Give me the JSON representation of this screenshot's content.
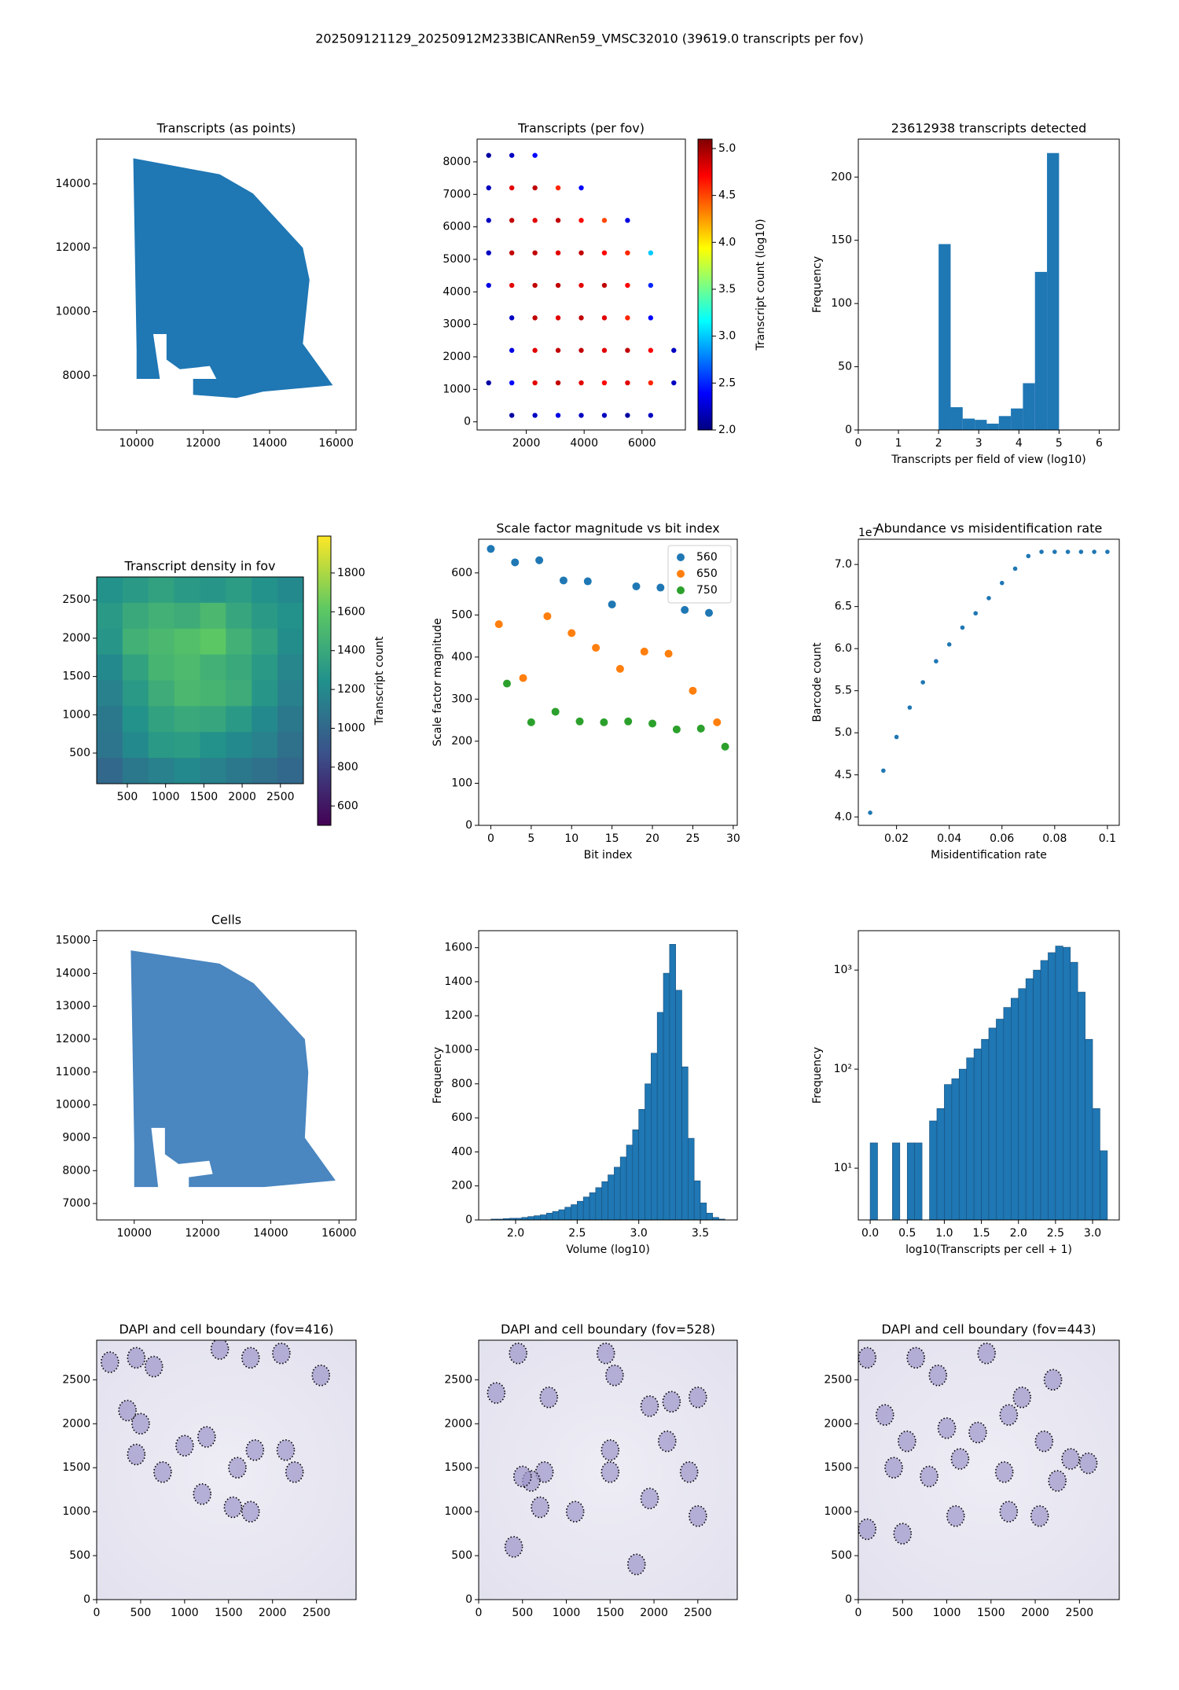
{
  "title": "202509121129_20250912M233BICANRen59_VMSC32010 (39619.0 transcripts per fov)",
  "chart_data": [
    {
      "type": "region",
      "title": "Transcripts (as points)",
      "color": "#1f77b4",
      "x": [
        9900,
        12500,
        13500,
        15000,
        15200,
        15000,
        15900,
        13800,
        13000,
        11700,
        11700,
        12400,
        12200,
        11300,
        10900,
        10900,
        10500,
        10700,
        10000,
        10000
      ],
      "y": [
        14800,
        14300,
        13700,
        12000,
        11000,
        9000,
        7700,
        7500,
        7300,
        7400,
        7900,
        7900,
        8300,
        8200,
        8500,
        9300,
        9300,
        7900,
        7900,
        8800
      ],
      "xlim": [
        8800,
        16600
      ],
      "ylim": [
        6300,
        15400
      ],
      "xticks": [
        10000,
        12000,
        14000,
        16000
      ],
      "yticks": [
        8000,
        10000,
        12000,
        14000
      ]
    },
    {
      "type": "fovscatter",
      "title": "Transcripts (per fov)",
      "x": [
        700,
        1500,
        2300,
        700,
        1500,
        2300,
        3100,
        3900,
        700,
        1500,
        2300,
        3100,
        3900,
        4700,
        5500,
        700,
        1500,
        2300,
        3100,
        3900,
        4700,
        5500,
        6300,
        700,
        1500,
        2300,
        3100,
        3900,
        4700,
        5500,
        6300,
        1500,
        2300,
        3100,
        3900,
        4700,
        5500,
        6300,
        1500,
        2300,
        3100,
        3900,
        4700,
        5500,
        6300,
        7100,
        700,
        1500,
        2300,
        3100,
        3900,
        4700,
        5500,
        6300,
        7100,
        1500,
        2300,
        3100,
        3900,
        4700,
        5500,
        6300
      ],
      "y": [
        8200,
        8200,
        8200,
        7200,
        7200,
        7200,
        7200,
        7200,
        6200,
        6200,
        6200,
        6200,
        6200,
        6200,
        6200,
        5200,
        5200,
        5200,
        5200,
        5200,
        5200,
        5200,
        5200,
        4200,
        4200,
        4200,
        4200,
        4200,
        4200,
        4200,
        4200,
        3200,
        3200,
        3200,
        3200,
        3200,
        3200,
        3200,
        2200,
        2200,
        2200,
        2200,
        2200,
        2200,
        2200,
        2200,
        1200,
        1200,
        1200,
        1200,
        1200,
        1200,
        1200,
        1200,
        1200,
        200,
        200,
        200,
        200,
        200,
        200,
        200
      ],
      "c": [
        2.1,
        2.2,
        2.4,
        2.2,
        4.8,
        4.9,
        4.6,
        2.4,
        2.2,
        4.9,
        4.8,
        4.9,
        4.7,
        4.5,
        2.3,
        2.2,
        4.9,
        4.9,
        4.8,
        4.9,
        4.7,
        4.6,
        3.0,
        2.3,
        4.8,
        4.9,
        4.9,
        4.8,
        4.9,
        4.7,
        2.5,
        2.2,
        4.9,
        4.8,
        4.9,
        4.8,
        4.6,
        2.4,
        2.3,
        4.8,
        4.9,
        4.9,
        4.8,
        4.9,
        4.7,
        2.2,
        2.1,
        2.4,
        4.8,
        4.9,
        4.8,
        4.7,
        4.8,
        4.6,
        2.2,
        2.1,
        2.2,
        2.3,
        2.2,
        2.2,
        2.1,
        2.2
      ],
      "xlim": [
        300,
        7500
      ],
      "ylim": [
        -250,
        8700
      ],
      "xticks": [
        2000,
        4000,
        6000
      ],
      "yticks": [
        0,
        1000,
        2000,
        3000,
        4000,
        5000,
        6000,
        7000,
        8000
      ],
      "colorbar": {
        "label": "Transcript count (log10)",
        "cmap": "jet",
        "lim": [
          2.0,
          5.1
        ],
        "ticks": [
          {
            "value": 2.0,
            "label": "2.0"
          },
          {
            "value": 2.5,
            "label": "2.5"
          },
          {
            "value": 3.0,
            "label": "3.0"
          },
          {
            "value": 3.5,
            "label": "3.5"
          },
          {
            "value": 4.0,
            "label": "4.0"
          },
          {
            "value": 4.5,
            "label": "4.5"
          },
          {
            "value": 5.0,
            "label": "5.0"
          }
        ]
      }
    },
    {
      "type": "histogram",
      "title": "23612938 transcripts detected",
      "xlabel": "Transcripts per field of view (log10)",
      "ylabel": "Frequency",
      "color": "#1f77b4",
      "bins": [
        2.0,
        2.3,
        2.6,
        2.9,
        3.2,
        3.5,
        3.8,
        4.1,
        4.4,
        4.7,
        5.0
      ],
      "values": [
        147,
        18,
        9,
        8,
        5,
        11,
        17,
        37,
        125,
        219
      ],
      "xlim": [
        0,
        6.5
      ],
      "ylim": [
        0,
        230
      ],
      "xticks": [
        0,
        1,
        2,
        3,
        4,
        5,
        6
      ],
      "yticks": [
        0,
        50,
        100,
        150,
        200
      ]
    },
    {
      "type": "heatmap",
      "title": "Transcript density in fov",
      "z": [
        [
          1250,
          1300,
          1350,
          1300,
          1280,
          1320,
          1250,
          1200
        ],
        [
          1300,
          1400,
          1450,
          1420,
          1500,
          1380,
          1300,
          1250
        ],
        [
          1280,
          1450,
          1500,
          1550,
          1600,
          1450,
          1350,
          1220
        ],
        [
          1200,
          1350,
          1480,
          1520,
          1450,
          1400,
          1300,
          1180
        ],
        [
          1150,
          1300,
          1420,
          1500,
          1480,
          1420,
          1280,
          1150
        ],
        [
          1100,
          1250,
          1350,
          1400,
          1380,
          1300,
          1200,
          1100
        ],
        [
          1080,
          1200,
          1300,
          1320,
          1250,
          1200,
          1150,
          1050
        ],
        [
          1000,
          1100,
          1150,
          1200,
          1150,
          1100,
          1050,
          1000
        ]
      ],
      "xlim": [
        100,
        2800
      ],
      "ylim": [
        100,
        2800
      ],
      "xticks": [
        500,
        1000,
        1500,
        2000,
        2500
      ],
      "yticks": [
        500,
        1000,
        1500,
        2000,
        2500
      ],
      "colorbar": {
        "label": "Transcript count",
        "cmap": "viridis",
        "lim": [
          500,
          1990
        ],
        "ticks": [
          600,
          800,
          1000,
          1200,
          1400,
          1600,
          1800
        ]
      }
    },
    {
      "type": "scatter",
      "title": "Scale factor magnitude vs bit index",
      "xlabel": "Bit index",
      "ylabel": "Scale factor magnitude",
      "legend": "upper right",
      "series": [
        {
          "name": "560",
          "color": "#1f77b4",
          "x": [
            0,
            3,
            6,
            9,
            12,
            15,
            18,
            21,
            24,
            27
          ],
          "values": [
            657,
            625,
            630,
            582,
            580,
            525,
            568,
            565,
            512,
            505
          ]
        },
        {
          "name": "650",
          "color": "#ff7f0e",
          "x": [
            1,
            4,
            7,
            10,
            13,
            16,
            19,
            22,
            25,
            28
          ],
          "values": [
            478,
            350,
            497,
            457,
            422,
            372,
            413,
            408,
            320,
            245
          ]
        },
        {
          "name": "750",
          "color": "#2ca02c",
          "x": [
            2,
            5,
            8,
            11,
            14,
            17,
            20,
            23,
            26,
            29
          ],
          "values": [
            337,
            245,
            270,
            247,
            245,
            247,
            242,
            228,
            230,
            187
          ]
        }
      ],
      "xlim": [
        -1.5,
        30.5
      ],
      "ylim": [
        0,
        680
      ],
      "xticks": [
        0,
        5,
        10,
        15,
        20,
        25,
        30
      ],
      "yticks": [
        0,
        100,
        200,
        300,
        400,
        500,
        600
      ]
    },
    {
      "type": "scatter",
      "title": "Abundance vs misidentification rate",
      "xlabel": "Misidentification rate",
      "ylabel": "Barcode count",
      "offset_text": "1e7",
      "small": true,
      "series": [
        {
          "color": "#1f77b4",
          "x": [
            0.01,
            0.015,
            0.02,
            0.025,
            0.03,
            0.035,
            0.04,
            0.045,
            0.05,
            0.055,
            0.06,
            0.065,
            0.07,
            0.075,
            0.08,
            0.085,
            0.09,
            0.095,
            0.1
          ],
          "values": [
            4.05,
            4.55,
            4.95,
            5.3,
            5.6,
            5.85,
            6.05,
            6.25,
            6.42,
            6.6,
            6.78,
            6.95,
            7.1,
            7.15,
            7.15,
            7.15,
            7.15,
            7.15,
            7.15
          ]
        }
      ],
      "xlim": [
        0.0055,
        0.1045
      ],
      "ylim": [
        3.9,
        7.3
      ],
      "xticks": [
        0.02,
        0.04,
        0.06,
        0.08,
        0.1
      ],
      "yticks": [
        {
          "value": 4.0,
          "label": "4.0"
        },
        {
          "value": 4.5,
          "label": "4.5"
        },
        {
          "value": 5.0,
          "label": "5.0"
        },
        {
          "value": 5.5,
          "label": "5.5"
        },
        {
          "value": 6.0,
          "label": "6.0"
        },
        {
          "value": 6.5,
          "label": "6.5"
        },
        {
          "value": 7.0,
          "label": "7.0"
        }
      ]
    },
    {
      "type": "region",
      "title": "Cells",
      "color": "#4a86c0",
      "x": [
        9900,
        12500,
        13500,
        15000,
        15100,
        15000,
        15900,
        13800,
        13000,
        11600,
        11600,
        12300,
        12200,
        11300,
        10900,
        10900,
        10500,
        10700,
        10000,
        10000
      ],
      "y": [
        14700,
        14300,
        13700,
        12000,
        11000,
        9000,
        7700,
        7500,
        7500,
        7500,
        7800,
        7900,
        8300,
        8200,
        8500,
        9300,
        9300,
        7500,
        7500,
        8800
      ],
      "xlim": [
        8900,
        16500
      ],
      "ylim": [
        6500,
        15300
      ],
      "xticks": [
        10000,
        12000,
        14000,
        16000
      ],
      "yticks": [
        7000,
        8000,
        9000,
        10000,
        11000,
        12000,
        13000,
        14000,
        15000
      ]
    },
    {
      "type": "histogram",
      "xlabel": "Volume (log10)",
      "ylabel": "Frequency",
      "color": "#1f77b4",
      "edgecolor": "#1a4f7a",
      "bins": [
        1.8,
        1.85,
        1.9,
        1.95,
        2.0,
        2.05,
        2.1,
        2.15,
        2.2,
        2.25,
        2.3,
        2.35,
        2.4,
        2.45,
        2.5,
        2.55,
        2.6,
        2.65,
        2.7,
        2.75,
        2.8,
        2.85,
        2.9,
        2.95,
        3.0,
        3.05,
        3.1,
        3.15,
        3.2,
        3.25,
        3.3,
        3.35,
        3.4,
        3.45,
        3.5,
        3.55,
        3.6,
        3.65,
        3.7
      ],
      "values": [
        5,
        5,
        8,
        10,
        10,
        15,
        20,
        25,
        30,
        40,
        50,
        60,
        75,
        90,
        110,
        135,
        160,
        190,
        225,
        265,
        310,
        370,
        440,
        530,
        650,
        800,
        980,
        1220,
        1450,
        1620,
        1350,
        900,
        480,
        230,
        100,
        40,
        15,
        5
      ],
      "xlim": [
        1.7,
        3.8
      ],
      "ylim": [
        0,
        1700
      ],
      "xticks": [
        {
          "value": 2.0,
          "label": "2.0"
        },
        {
          "value": 2.5,
          "label": "2.5"
        },
        {
          "value": 3.0,
          "label": "3.0"
        },
        {
          "value": 3.5,
          "label": "3.5"
        }
      ],
      "yticks": [
        0,
        200,
        400,
        600,
        800,
        1000,
        1200,
        1400,
        1600
      ]
    },
    {
      "type": "histogram",
      "xlabel": "log10(Transcripts per cell + 1)",
      "ylabel": "Frequency",
      "color": "#1f77b4",
      "edgecolor": "#1a4f7a",
      "log_y": true,
      "bins": [
        0.0,
        0.1,
        0.2,
        0.3,
        0.4,
        0.5,
        0.6,
        0.7,
        0.8,
        0.9,
        1.0,
        1.1,
        1.2,
        1.3,
        1.4,
        1.5,
        1.6,
        1.7,
        1.8,
        1.9,
        2.0,
        2.1,
        2.2,
        2.3,
        2.4,
        2.5,
        2.6,
        2.7,
        2.8,
        2.9,
        3.0,
        3.1,
        3.2
      ],
      "values": [
        18,
        0,
        0,
        18,
        0,
        18,
        18,
        0,
        30,
        40,
        70,
        80,
        100,
        130,
        160,
        200,
        260,
        320,
        420,
        520,
        650,
        820,
        1000,
        1250,
        1500,
        1750,
        1700,
        1200,
        600,
        200,
        40,
        15
      ],
      "xlim": [
        -0.16,
        3.36
      ],
      "ylim": [
        3,
        2500
      ],
      "xticks": [
        {
          "value": 0.0,
          "label": "0.0"
        },
        {
          "value": 0.5,
          "label": "0.5"
        },
        {
          "value": 1.0,
          "label": "1.0"
        },
        {
          "value": 1.5,
          "label": "1.5"
        },
        {
          "value": 2.0,
          "label": "2.0"
        },
        {
          "value": 2.5,
          "label": "2.5"
        },
        {
          "value": 3.0,
          "label": "3.0"
        }
      ],
      "yticks": [
        {
          "value": 10,
          "label": "10¹"
        },
        {
          "value": 100,
          "label": "10²"
        },
        {
          "value": 1000,
          "label": "10³"
        }
      ]
    },
    {
      "type": "dapi",
      "title": "DAPI and cell boundary (fov=416)",
      "x": [
        150,
        450,
        650,
        1400,
        1750,
        2100,
        2550,
        350,
        500,
        1250,
        1000,
        1800,
        1600,
        2150,
        450,
        1200,
        1550,
        1750,
        2250,
        750
      ],
      "y": [
        2700,
        2750,
        2650,
        2850,
        2750,
        2800,
        2550,
        2150,
        2000,
        1850,
        1750,
        1700,
        1500,
        1700,
        1650,
        1200,
        1050,
        1000,
        1450,
        1450
      ],
      "xlim": [
        0,
        2950
      ],
      "ylim": [
        0,
        2950
      ],
      "xticks": [
        0,
        500,
        1000,
        1500,
        2000,
        2500
      ],
      "yticks": [
        0,
        500,
        1000,
        1500,
        2000,
        2500
      ]
    },
    {
      "type": "dapi",
      "title": "DAPI and cell boundary (fov=528)",
      "x": [
        200,
        450,
        800,
        1450,
        1550,
        1950,
        2200,
        2500,
        750,
        600,
        1500,
        2150,
        2400,
        500,
        700,
        1100,
        1500,
        1950,
        2500,
        1800,
        400
      ],
      "y": [
        2350,
        2800,
        2300,
        2800,
        2550,
        2200,
        2250,
        2300,
        1450,
        1350,
        1700,
        1800,
        1450,
        1400,
        1050,
        1000,
        1450,
        1150,
        950,
        400,
        600
      ],
      "xlim": [
        0,
        2950
      ],
      "ylim": [
        0,
        2950
      ],
      "xticks": [
        0,
        500,
        1000,
        1500,
        2000,
        2500
      ],
      "yticks": [
        0,
        500,
        1000,
        1500,
        2000,
        2500
      ]
    },
    {
      "type": "dapi",
      "title": "DAPI and cell boundary (fov=443)",
      "x": [
        100,
        650,
        900,
        1450,
        1850,
        2200,
        300,
        550,
        1000,
        1350,
        1700,
        2100,
        2400,
        400,
        800,
        1150,
        1650,
        2250,
        2600,
        100,
        500,
        1100,
        1700,
        2050
      ],
      "y": [
        2750,
        2750,
        2550,
        2800,
        2300,
        2500,
        2100,
        1800,
        1950,
        1900,
        2100,
        1800,
        1600,
        1500,
        1400,
        1600,
        1450,
        1350,
        1550,
        800,
        750,
        950,
        1000,
        950
      ],
      "xlim": [
        0,
        2950
      ],
      "ylim": [
        0,
        2950
      ],
      "xticks": [
        0,
        500,
        1000,
        1500,
        2000,
        2500
      ],
      "yticks": [
        0,
        500,
        1000,
        1500,
        2000,
        2500
      ]
    }
  ]
}
